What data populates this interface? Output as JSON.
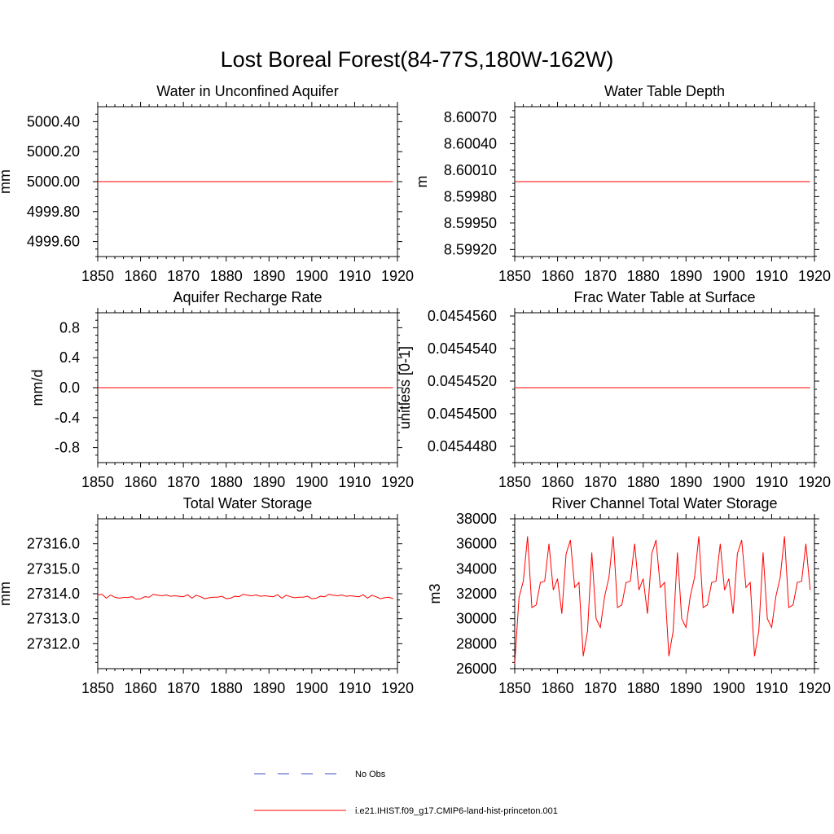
{
  "page": {
    "title": "Lost Boreal Forest(84-77S,180W-162W)"
  },
  "legend": {
    "items": [
      {
        "label": "No Obs",
        "color": "#3b4cc0",
        "style": "dashed"
      },
      {
        "label": "i.e21.IHIST.f09_g17.CMIP6-land-hist-princeton.001",
        "color": "#ff0000",
        "style": "solid"
      }
    ]
  },
  "chart_data": [
    {
      "type": "line",
      "title": "Water in Unconfined Aquifer",
      "ylabel": "mm",
      "xlim": [
        1850,
        1920
      ],
      "ylim": [
        4999.5,
        5000.5
      ],
      "xticks": [
        1850,
        1860,
        1870,
        1880,
        1890,
        1900,
        1910,
        1920
      ],
      "yticks": [
        4999.6,
        4999.8,
        5000.0,
        5000.2,
        5000.4
      ],
      "ytick_labels": [
        "4999.60",
        "4999.80",
        "5000.00",
        "5000.20",
        "5000.40"
      ],
      "series": [
        {
          "color": "#ff0000",
          "x": [
            1850,
            1919
          ],
          "values": [
            5000.0,
            5000.0
          ]
        }
      ]
    },
    {
      "type": "line",
      "title": "Water Table Depth",
      "ylabel": "m",
      "xlim": [
        1850,
        1920
      ],
      "ylim": [
        8.59912,
        8.60082
      ],
      "xticks": [
        1850,
        1860,
        1870,
        1880,
        1890,
        1900,
        1910,
        1920
      ],
      "yticks": [
        8.5992,
        8.5995,
        8.5998,
        8.6001,
        8.6004,
        8.6007
      ],
      "ytick_labels": [
        "8.59920",
        "8.59950",
        "8.59980",
        "8.60010",
        "8.60040",
        "8.60070"
      ],
      "series": [
        {
          "color": "#ff0000",
          "x": [
            1850,
            1919
          ],
          "values": [
            8.59997,
            8.59997
          ]
        }
      ]
    },
    {
      "type": "line",
      "title": "Aquifer Recharge Rate",
      "ylabel": "mm/d",
      "xlim": [
        1850,
        1920
      ],
      "ylim": [
        -1.0,
        1.0
      ],
      "xticks": [
        1850,
        1860,
        1870,
        1880,
        1890,
        1900,
        1910,
        1920
      ],
      "yticks": [
        -0.8,
        -0.4,
        0.0,
        0.4,
        0.8
      ],
      "ytick_labels": [
        "-0.8",
        "-0.4",
        "0.0",
        "0.4",
        "0.8"
      ],
      "series": [
        {
          "color": "#ff0000",
          "x": [
            1850,
            1919
          ],
          "values": [
            0.0,
            0.0
          ]
        }
      ]
    },
    {
      "type": "line",
      "title": "Frac Water Table at Surface",
      "ylabel": "unitless [0-1]",
      "xlim": [
        1850,
        1920
      ],
      "ylim": [
        0.045447,
        0.0454562
      ],
      "xticks": [
        1850,
        1860,
        1870,
        1880,
        1890,
        1900,
        1910,
        1920
      ],
      "yticks": [
        0.045448,
        0.04545,
        0.045452,
        0.045454,
        0.045456
      ],
      "ytick_labels": [
        "0.0454480",
        "0.0454500",
        "0.0454520",
        "0.0454540",
        "0.0454560"
      ],
      "series": [
        {
          "color": "#ff0000",
          "x": [
            1850,
            1919
          ],
          "values": [
            0.0454516,
            0.0454516
          ]
        }
      ]
    },
    {
      "type": "line",
      "title": "Total Water Storage",
      "ylabel": "mm",
      "xlim": [
        1850,
        1920
      ],
      "ylim": [
        27311.0,
        27317.0
      ],
      "xticks": [
        1850,
        1860,
        1870,
        1880,
        1890,
        1900,
        1910,
        1920
      ],
      "yticks": [
        27312.0,
        27313.0,
        27314.0,
        27315.0,
        27316.0
      ],
      "ytick_labels": [
        "27312.0",
        "27313.0",
        "27314.0",
        "27315.0",
        "27316.0"
      ],
      "series": [
        {
          "color": "#ff0000",
          "x": [
            1850,
            1851,
            1852,
            1853,
            1854,
            1855,
            1856,
            1857,
            1858,
            1859,
            1860,
            1861,
            1862,
            1863,
            1864,
            1865,
            1866,
            1867,
            1868,
            1869,
            1870,
            1871,
            1872,
            1873,
            1874,
            1875,
            1876,
            1877,
            1878,
            1879,
            1880,
            1881,
            1882,
            1883,
            1884,
            1885,
            1886,
            1887,
            1888,
            1889,
            1890,
            1891,
            1892,
            1893,
            1894,
            1895,
            1896,
            1897,
            1898,
            1899,
            1900,
            1901,
            1902,
            1903,
            1904,
            1905,
            1906,
            1907,
            1908,
            1909,
            1910,
            1911,
            1912,
            1913,
            1914,
            1915,
            1916,
            1917,
            1918,
            1919
          ],
          "values": [
            27313.95,
            27313.98,
            27313.82,
            27313.95,
            27313.86,
            27313.82,
            27313.85,
            27313.85,
            27313.88,
            27313.78,
            27313.8,
            27313.88,
            27313.86,
            27313.98,
            27313.94,
            27313.92,
            27313.95,
            27313.9,
            27313.92,
            27313.9,
            27313.88,
            27313.96,
            27313.82,
            27313.94,
            27313.88,
            27313.8,
            27313.84,
            27313.86,
            27313.86,
            27313.9,
            27313.8,
            27313.82,
            27313.9,
            27313.88,
            27313.98,
            27313.94,
            27313.92,
            27313.95,
            27313.9,
            27313.92,
            27313.9,
            27313.88,
            27313.96,
            27313.82,
            27313.94,
            27313.88,
            27313.84,
            27313.86,
            27313.86,
            27313.9,
            27313.8,
            27313.82,
            27313.9,
            27313.88,
            27313.98,
            27313.94,
            27313.92,
            27313.95,
            27313.9,
            27313.92,
            27313.9,
            27313.88,
            27313.96,
            27313.82,
            27313.94,
            27313.88,
            27313.8,
            27313.84,
            27313.86,
            27313.8
          ]
        }
      ]
    },
    {
      "type": "line",
      "title": "River Channel Total Water Storage",
      "ylabel": "m3",
      "xlim": [
        1850,
        1920
      ],
      "ylim": [
        26000,
        38000
      ],
      "xticks": [
        1850,
        1860,
        1870,
        1880,
        1890,
        1900,
        1910,
        1920
      ],
      "yticks": [
        26000,
        28000,
        30000,
        32000,
        34000,
        36000,
        38000
      ],
      "ytick_labels": [
        "26000",
        "28000",
        "30000",
        "32000",
        "34000",
        "36000",
        "38000"
      ],
      "series": [
        {
          "color": "#ff0000",
          "x": [
            1850,
            1851,
            1852,
            1853,
            1854,
            1855,
            1856,
            1857,
            1858,
            1859,
            1860,
            1861,
            1862,
            1863,
            1864,
            1865,
            1866,
            1867,
            1868,
            1869,
            1870,
            1871,
            1872,
            1873,
            1874,
            1875,
            1876,
            1877,
            1878,
            1879,
            1880,
            1881,
            1882,
            1883,
            1884,
            1885,
            1886,
            1887,
            1888,
            1889,
            1890,
            1891,
            1892,
            1893,
            1894,
            1895,
            1896,
            1897,
            1898,
            1899,
            1900,
            1901,
            1902,
            1903,
            1904,
            1905,
            1906,
            1907,
            1908,
            1909,
            1910,
            1911,
            1912,
            1913,
            1914,
            1915,
            1916,
            1917,
            1918,
            1919
          ],
          "values": [
            26400,
            31700,
            33000,
            36600,
            30900,
            31100,
            32900,
            33000,
            36000,
            32300,
            33200,
            30400,
            35200,
            36300,
            32500,
            32900,
            27000,
            29000,
            35300,
            30000,
            29300,
            31800,
            33300,
            36600,
            30900,
            31100,
            32900,
            33000,
            36000,
            32300,
            33200,
            30400,
            35200,
            36300,
            32500,
            32900,
            27000,
            29000,
            35300,
            30000,
            29300,
            31800,
            33300,
            36600,
            30900,
            31100,
            32900,
            33000,
            36000,
            32300,
            33200,
            30400,
            35200,
            36300,
            32500,
            32900,
            27000,
            29000,
            35300,
            30000,
            29300,
            31800,
            33300,
            36600,
            30900,
            31100,
            32900,
            33000,
            36000,
            32300
          ]
        }
      ]
    }
  ]
}
